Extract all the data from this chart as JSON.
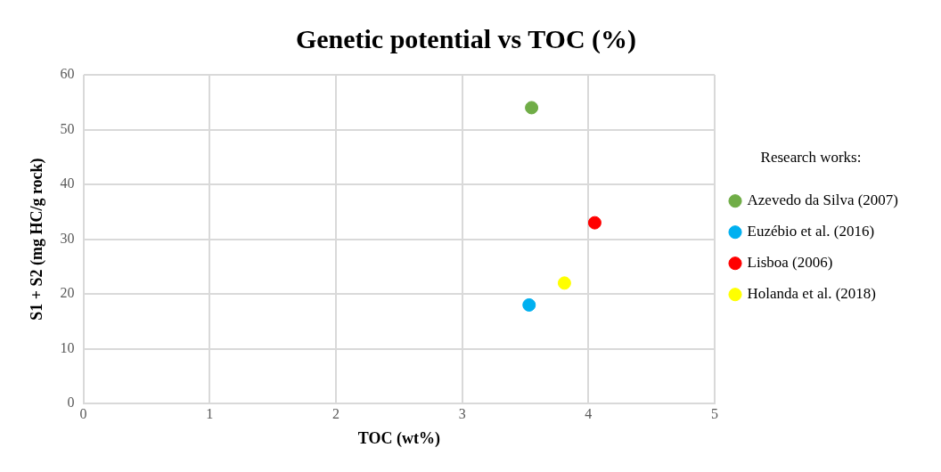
{
  "chart_data": {
    "type": "scatter",
    "title": "Genetic potential vs TOC (%)",
    "xlabel": "TOC (wt%)",
    "ylabel": "S1 + S2 (mg HC/g rock)",
    "legend_title": "Research works:",
    "legend": "right",
    "grid": true,
    "marker": "circle",
    "xlim": [
      0,
      5
    ],
    "xticks": [
      0,
      1,
      2,
      3,
      4,
      5
    ],
    "ylim": [
      0,
      60
    ],
    "yticks": [
      0,
      10,
      20,
      30,
      40,
      50,
      60
    ],
    "series": [
      {
        "name": "Azevedo da Silva (2007)",
        "color": "#70ad47",
        "x": [
          3.55
        ],
        "values": [
          54
        ]
      },
      {
        "name": "Euzébio et al. (2016)",
        "color": "#00b0f0",
        "x": [
          3.53
        ],
        "values": [
          18
        ]
      },
      {
        "name": "Lisboa (2006)",
        "color": "#ff0000",
        "x": [
          4.05
        ],
        "values": [
          33
        ]
      },
      {
        "name": "Holanda et al. (2018)",
        "color": "#ffff00",
        "x": [
          3.81
        ],
        "values": [
          22
        ]
      }
    ]
  }
}
